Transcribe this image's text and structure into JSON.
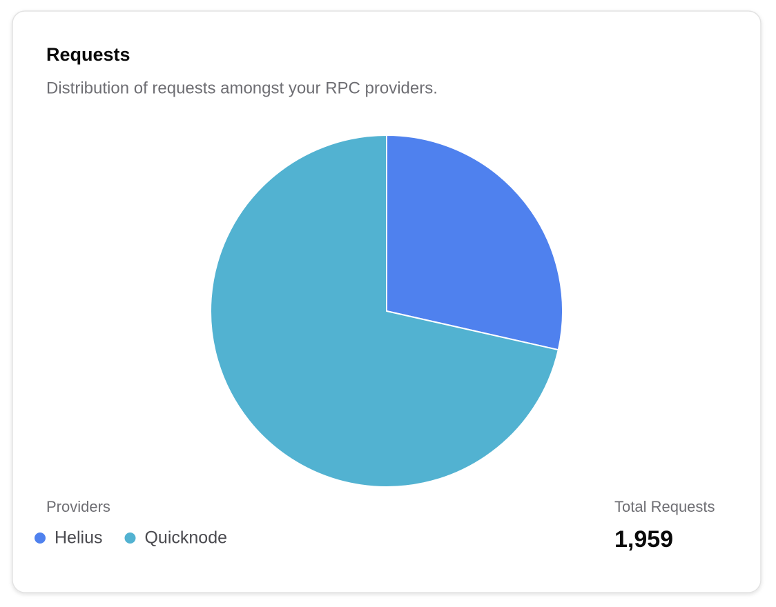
{
  "chart_data": {
    "type": "pie",
    "title": "Requests",
    "subtitle": "Distribution of requests amongst your RPC providers.",
    "legend_title": "Providers",
    "categories": [
      "Helius",
      "Quicknode"
    ],
    "values": [
      559,
      1400
    ],
    "colors": [
      "#4f81ee",
      "#52b2d1"
    ],
    "total_label": "Total Requests",
    "total_value": "1,959"
  }
}
